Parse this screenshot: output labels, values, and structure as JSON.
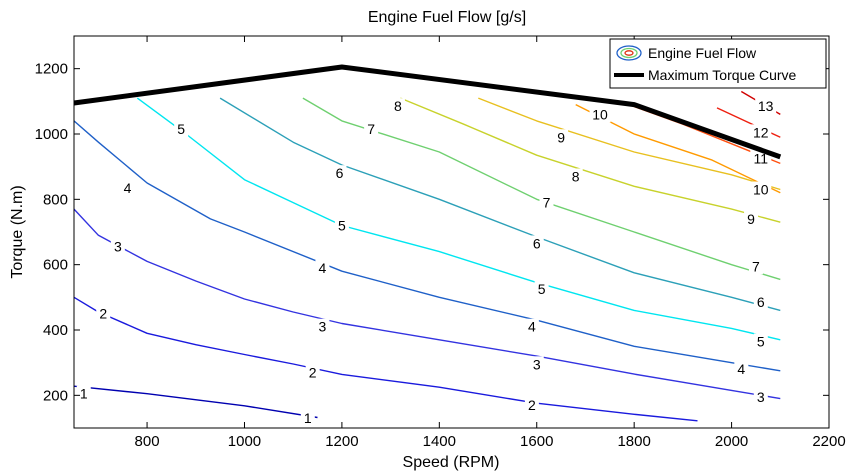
{
  "chart_data": {
    "type": "contour",
    "title": "Engine Fuel Flow [g/s]",
    "xlabel": "Speed (RPM)",
    "ylabel": "Torque (N.m)",
    "xlim": [
      650,
      2200
    ],
    "ylim": [
      100,
      1300
    ],
    "xticks": [
      800,
      1000,
      1200,
      1400,
      1600,
      1800,
      2000,
      2200
    ],
    "yticks": [
      200,
      400,
      600,
      800,
      1000,
      1200
    ],
    "grid": false,
    "legend": {
      "placement": "top-right",
      "entries": [
        "Engine Fuel Flow",
        "Maximum Torque Curve"
      ]
    },
    "max_torque_curve": [
      {
        "x": 650,
        "y": 1095
      },
      {
        "x": 1200,
        "y": 1205
      },
      {
        "x": 1800,
        "y": 1090
      },
      {
        "x": 2100,
        "y": 930
      }
    ],
    "contours": [
      {
        "level": 1,
        "color": "#0000b0",
        "points": [
          [
            650,
            228
          ],
          [
            800,
            205
          ],
          [
            1000,
            168
          ],
          [
            1150,
            132
          ]
        ]
      },
      {
        "level": 2,
        "color": "#1a1add",
        "points": [
          [
            650,
            500
          ],
          [
            700,
            455
          ],
          [
            800,
            390
          ],
          [
            900,
            355
          ],
          [
            1000,
            325
          ],
          [
            1100,
            296
          ],
          [
            1200,
            264
          ],
          [
            1400,
            225
          ],
          [
            1600,
            176
          ],
          [
            1800,
            142
          ],
          [
            1930,
            122
          ]
        ]
      },
      {
        "level": 3,
        "color": "#3333e0",
        "points": [
          [
            650,
            770
          ],
          [
            700,
            690
          ],
          [
            800,
            610
          ],
          [
            900,
            550
          ],
          [
            1000,
            495
          ],
          [
            1100,
            455
          ],
          [
            1200,
            420
          ],
          [
            1400,
            370
          ],
          [
            1600,
            320
          ],
          [
            1800,
            265
          ],
          [
            2000,
            215
          ],
          [
            2100,
            190
          ]
        ]
      },
      {
        "level": 4,
        "color": "#1f60c8",
        "points": [
          [
            650,
            1040
          ],
          [
            700,
            975
          ],
          [
            800,
            850
          ],
          [
            930,
            740
          ],
          [
            1000,
            700
          ],
          [
            1200,
            580
          ],
          [
            1400,
            500
          ],
          [
            1600,
            430
          ],
          [
            1800,
            350
          ],
          [
            2000,
            300
          ],
          [
            2100,
            275
          ]
        ]
      },
      {
        "level": 5,
        "color": "#00e6f0",
        "points": [
          [
            780,
            1110
          ],
          [
            880,
            1000
          ],
          [
            1000,
            860
          ],
          [
            1100,
            790
          ],
          [
            1200,
            720
          ],
          [
            1400,
            640
          ],
          [
            1600,
            545
          ],
          [
            1800,
            460
          ],
          [
            2000,
            405
          ],
          [
            2100,
            370
          ]
        ]
      },
      {
        "level": 6,
        "color": "#2ca0b8",
        "points": [
          [
            950,
            1110
          ],
          [
            1100,
            975
          ],
          [
            1200,
            905
          ],
          [
            1400,
            800
          ],
          [
            1600,
            685
          ],
          [
            1800,
            575
          ],
          [
            2000,
            500
          ],
          [
            2100,
            460
          ]
        ]
      },
      {
        "level": 7,
        "color": "#6fd070",
        "points": [
          [
            1120,
            1110
          ],
          [
            1200,
            1040
          ],
          [
            1400,
            945
          ],
          [
            1600,
            800
          ],
          [
            1800,
            700
          ],
          [
            2000,
            600
          ],
          [
            2100,
            555
          ]
        ]
      },
      {
        "level": 8,
        "color": "#c8d22c",
        "points": [
          [
            1320,
            1110
          ],
          [
            1450,
            1030
          ],
          [
            1600,
            935
          ],
          [
            1800,
            840
          ],
          [
            2000,
            770
          ],
          [
            2100,
            730
          ]
        ]
      },
      {
        "level": 9,
        "color": "#e8c020",
        "points": [
          [
            1480,
            1110
          ],
          [
            1600,
            1040
          ],
          [
            1800,
            945
          ],
          [
            2000,
            875
          ],
          [
            2100,
            830
          ]
        ]
      },
      {
        "level": 10,
        "color": "#ff9a00",
        "points": [
          [
            1680,
            1090
          ],
          [
            1800,
            1000
          ],
          [
            1960,
            920
          ],
          [
            2100,
            820
          ]
        ]
      },
      {
        "level": 11,
        "color": "#ff5010",
        "points": [
          [
            1770,
            1100
          ],
          [
            1900,
            1030
          ],
          [
            2100,
            910
          ]
        ]
      },
      {
        "level": 12,
        "color": "#ee2010",
        "points": [
          [
            1970,
            1080
          ],
          [
            2100,
            990
          ]
        ]
      },
      {
        "level": 13,
        "color": "#d00000",
        "points": [
          [
            2020,
            1130
          ],
          [
            2100,
            1060
          ]
        ]
      }
    ],
    "contour_labels": [
      {
        "text": "1",
        "x": 670,
        "y": 205
      },
      {
        "text": "1",
        "x": 1130,
        "y": 130
      },
      {
        "text": "2",
        "x": 710,
        "y": 450
      },
      {
        "text": "2",
        "x": 1140,
        "y": 270
      },
      {
        "text": "2",
        "x": 1590,
        "y": 170
      },
      {
        "text": "3",
        "x": 740,
        "y": 655
      },
      {
        "text": "3",
        "x": 1160,
        "y": 410
      },
      {
        "text": "3",
        "x": 1600,
        "y": 295
      },
      {
        "text": "3",
        "x": 2060,
        "y": 195
      },
      {
        "text": "4",
        "x": 760,
        "y": 835
      },
      {
        "text": "4",
        "x": 1160,
        "y": 590
      },
      {
        "text": "4",
        "x": 1590,
        "y": 410
      },
      {
        "text": "4",
        "x": 2020,
        "y": 280
      },
      {
        "text": "5",
        "x": 870,
        "y": 1015
      },
      {
        "text": "5",
        "x": 1200,
        "y": 720
      },
      {
        "text": "5",
        "x": 1610,
        "y": 525
      },
      {
        "text": "5",
        "x": 2060,
        "y": 365
      },
      {
        "text": "6",
        "x": 1195,
        "y": 880
      },
      {
        "text": "6",
        "x": 1600,
        "y": 665
      },
      {
        "text": "6",
        "x": 2060,
        "y": 485
      },
      {
        "text": "7",
        "x": 1260,
        "y": 1015
      },
      {
        "text": "7",
        "x": 1620,
        "y": 790
      },
      {
        "text": "7",
        "x": 2050,
        "y": 595
      },
      {
        "text": "8",
        "x": 1315,
        "y": 1085
      },
      {
        "text": "8",
        "x": 1680,
        "y": 870
      },
      {
        "text": "9",
        "x": 1650,
        "y": 990
      },
      {
        "text": "9",
        "x": 2040,
        "y": 740
      },
      {
        "text": "10",
        "x": 1730,
        "y": 1060
      },
      {
        "text": "10",
        "x": 2060,
        "y": 830
      },
      {
        "text": "11",
        "x": 2060,
        "y": 925
      },
      {
        "text": "12",
        "x": 2060,
        "y": 1005
      },
      {
        "text": "13",
        "x": 2070,
        "y": 1085
      }
    ]
  }
}
